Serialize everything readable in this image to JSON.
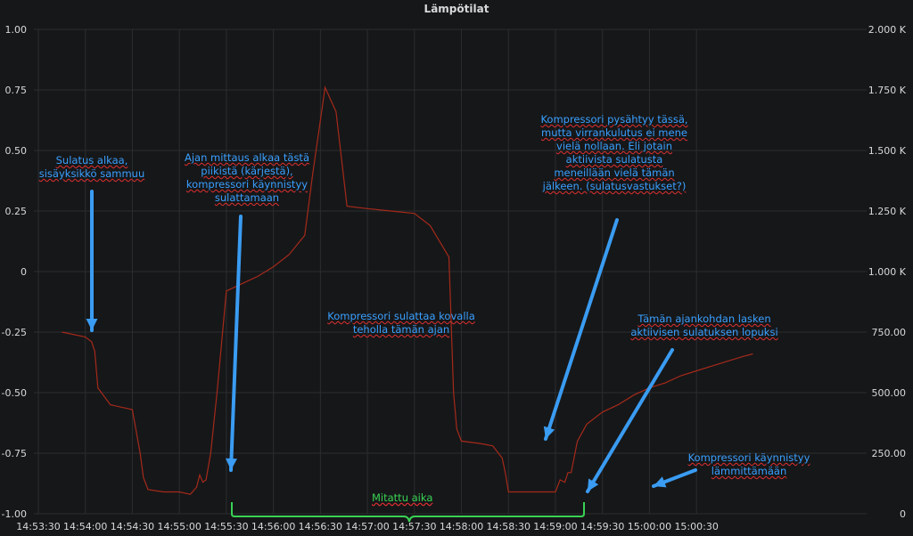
{
  "chart_data": {
    "type": "line",
    "title": "Lämpötilat",
    "x_ticks": [
      "14:53:30",
      "14:54:00",
      "14:54:30",
      "14:55:00",
      "14:55:30",
      "14:56:00",
      "14:56:30",
      "14:57:00",
      "14:57:30",
      "14:58:00",
      "14:58:30",
      "14:59:00",
      "14:59:30",
      "15:00:00",
      "15:00:30"
    ],
    "y_left_ticks": [
      "1.00",
      "0.75",
      "0.50",
      "0.25",
      "0",
      "-0.25",
      "-0.50",
      "-0.75",
      "-1.00"
    ],
    "y_left_range": [
      -1.0,
      1.0
    ],
    "y_right_ticks": [
      "2.000 K",
      "1.750 K",
      "1.500 K",
      "1.250 K",
      "1.000 K",
      "750.00",
      "500.00",
      "250.00",
      "0"
    ],
    "y_right_range": [
      0,
      2000
    ],
    "grid": true,
    "series": [
      {
        "color": "#a52a1a",
        "x": [
          "14:53:45",
          "14:54:00",
          "14:54:02",
          "14:54:04",
          "14:54:06",
          "14:54:08",
          "14:54:16",
          "14:54:30",
          "14:54:35",
          "14:54:37",
          "14:54:40",
          "14:54:50",
          "14:55:00",
          "14:55:07",
          "14:55:11",
          "14:55:13",
          "14:55:15",
          "14:55:17",
          "14:55:20",
          "14:55:24",
          "14:55:30",
          "14:55:40",
          "14:55:50",
          "14:56:00",
          "14:56:10",
          "14:56:20",
          "14:56:25",
          "14:56:33",
          "14:56:40",
          "14:56:47",
          "14:57:00",
          "14:57:15",
          "14:57:30",
          "14:57:40",
          "14:57:52",
          "14:57:55",
          "14:57:57",
          "14:58:00",
          "14:58:12",
          "14:58:20",
          "14:58:26",
          "14:58:28",
          "14:58:30",
          "14:58:45",
          "14:59:00",
          "14:59:03",
          "14:59:06",
          "14:59:08",
          "14:59:10",
          "14:59:14",
          "14:59:20",
          "14:59:30",
          "14:59:40",
          "14:59:50",
          "15:00:00",
          "15:00:10",
          "15:00:20",
          "15:00:30",
          "15:00:40",
          "15:00:50",
          "15:01:00",
          "15:01:06"
        ],
        "y": [
          -0.25,
          -0.27,
          -0.28,
          -0.29,
          -0.33,
          -0.48,
          -0.55,
          -0.57,
          -0.75,
          -0.85,
          -0.9,
          -0.91,
          -0.91,
          -0.92,
          -0.89,
          -0.84,
          -0.87,
          -0.86,
          -0.75,
          -0.5,
          -0.08,
          -0.05,
          -0.02,
          0.02,
          0.07,
          0.15,
          0.4,
          0.76,
          0.66,
          0.27,
          0.26,
          0.25,
          0.24,
          0.19,
          0.06,
          -0.5,
          -0.65,
          -0.7,
          -0.71,
          -0.72,
          -0.77,
          -0.83,
          -0.91,
          -0.91,
          -0.91,
          -0.86,
          -0.87,
          -0.83,
          -0.83,
          -0.7,
          -0.63,
          -0.58,
          -0.55,
          -0.51,
          -0.48,
          -0.46,
          -0.43,
          -0.41,
          -0.39,
          -0.37,
          -0.35,
          -0.34
        ]
      }
    ]
  },
  "annotations": {
    "a1": [
      "Sulatus alkaa,",
      "sisäyksikkö sammuu"
    ],
    "a2": [
      "Ajan mittaus alkaa tästä",
      "piikistä (kärjestä),",
      "kompressori käynnistyy",
      "sulattamaan"
    ],
    "a3": [
      "Kompressori sulattaa kovalla",
      "teholla tämän ajan"
    ],
    "a4": [
      "Kompressori pysähtyy tässä,",
      "mutta virrankulutus ei mene",
      "vielä nollaan. Eli jotain",
      "aktiivista sulatusta",
      "meneillään vielä tämän",
      "jälkeen. (sulatusvastukset?)"
    ],
    "a5": [
      "Tämän ajankohdan lasken",
      "aktiivisen sulatuksen lopuksi"
    ],
    "a6": [
      "Kompressori käynnistyy",
      "lämmittämään"
    ],
    "measured": "Mitattu aika"
  },
  "colors": {
    "line": "#a52a1a",
    "arrow": "#3a9cf2",
    "annotation": "#3aa0ff",
    "bracket": "#39d353",
    "grid": "#2b2d30",
    "tick": "#d8d9da"
  }
}
